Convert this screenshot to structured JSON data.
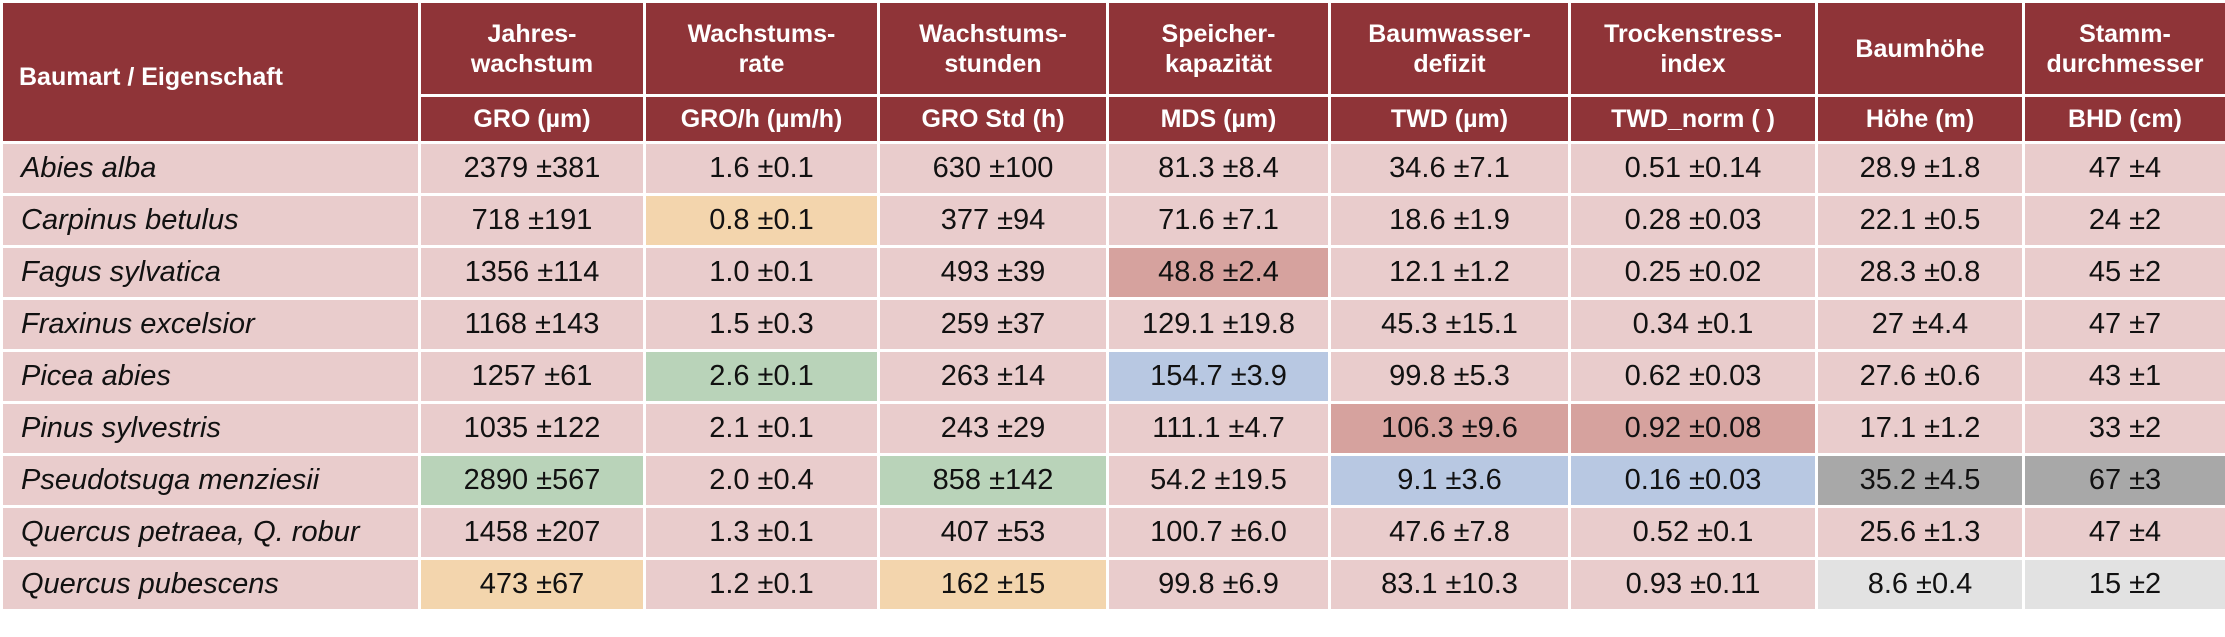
{
  "colors": {
    "header_bg": "#8f3438",
    "row_bg": "#e9cccc",
    "orange": "#f3d5ad",
    "green": "#b9d3b9",
    "red": "#d6a29e",
    "blue": "#b8c8e2",
    "dark_gray": "#a8a8a8",
    "light_gray": "#e2e2e2"
  },
  "table": {
    "corner_label": "Baumart / Eigenschaft",
    "columns": [
      {
        "title": [
          "Jahres-",
          "wachstum"
        ],
        "unit": "GRO (µm)"
      },
      {
        "title": [
          "Wachstums-",
          "rate"
        ],
        "unit": "GRO/h (µm/h)"
      },
      {
        "title": [
          "Wachstums-",
          "stunden"
        ],
        "unit": "GRO Std (h)"
      },
      {
        "title": [
          "Speicher-",
          "kapazität"
        ],
        "unit": "MDS (µm)"
      },
      {
        "title": [
          "Baumwasser-",
          "defizit"
        ],
        "unit": "TWD (µm)"
      },
      {
        "title": [
          "Trockenstress-",
          "index"
        ],
        "unit": "TWD_norm (  )"
      },
      {
        "title": [
          "Baumhöhe",
          ""
        ],
        "unit": "Höhe (m)"
      },
      {
        "title": [
          "Stamm-",
          "durchmesser"
        ],
        "unit": "BHD (cm)"
      }
    ],
    "rows": [
      {
        "species": "Abies alba",
        "cells": [
          {
            "v": "2379 ±381",
            "hl": ""
          },
          {
            "v": "1.6 ±0.1",
            "hl": ""
          },
          {
            "v": "630 ±100",
            "hl": ""
          },
          {
            "v": "81.3 ±8.4",
            "hl": ""
          },
          {
            "v": "34.6 ±7.1",
            "hl": ""
          },
          {
            "v": "0.51 ±0.14",
            "hl": ""
          },
          {
            "v": "28.9  ±1.8",
            "hl": ""
          },
          {
            "v": "47 ±4",
            "hl": ""
          }
        ]
      },
      {
        "species": "Carpinus betulus",
        "cells": [
          {
            "v": "718 ±191",
            "hl": ""
          },
          {
            "v": "0.8 ±0.1",
            "hl": "orange"
          },
          {
            "v": "377 ±94",
            "hl": ""
          },
          {
            "v": "71.6 ±7.1",
            "hl": ""
          },
          {
            "v": "18.6 ±1.9",
            "hl": ""
          },
          {
            "v": "0.28 ±0.03",
            "hl": ""
          },
          {
            "v": "22.1 ±0.5",
            "hl": ""
          },
          {
            "v": "24 ±2",
            "hl": ""
          }
        ]
      },
      {
        "species": "Fagus sylvatica",
        "cells": [
          {
            "v": "1356 ±114",
            "hl": ""
          },
          {
            "v": "1.0 ±0.1",
            "hl": ""
          },
          {
            "v": "493 ±39",
            "hl": ""
          },
          {
            "v": "48.8 ±2.4",
            "hl": "red"
          },
          {
            "v": "12.1 ±1.2",
            "hl": ""
          },
          {
            "v": "0.25 ±0.02",
            "hl": ""
          },
          {
            "v": "28.3 ±0.8",
            "hl": ""
          },
          {
            "v": "45 ±2",
            "hl": ""
          }
        ]
      },
      {
        "species": "Fraxinus excelsior",
        "cells": [
          {
            "v": "1168 ±143",
            "hl": ""
          },
          {
            "v": "1.5 ±0.3",
            "hl": ""
          },
          {
            "v": "259 ±37",
            "hl": ""
          },
          {
            "v": "129.1 ±19.8",
            "hl": ""
          },
          {
            "v": "45.3 ±15.1",
            "hl": ""
          },
          {
            "v": "0.34 ±0.1",
            "hl": ""
          },
          {
            "v": "27 ±4.4",
            "hl": ""
          },
          {
            "v": "47 ±7",
            "hl": ""
          }
        ]
      },
      {
        "species": "Picea abies",
        "cells": [
          {
            "v": "1257 ±61",
            "hl": ""
          },
          {
            "v": "2.6 ±0.1",
            "hl": "green"
          },
          {
            "v": "263 ±14",
            "hl": ""
          },
          {
            "v": "154.7 ±3.9",
            "hl": "blue"
          },
          {
            "v": "99.8 ±5.3",
            "hl": ""
          },
          {
            "v": "0.62 ±0.03",
            "hl": ""
          },
          {
            "v": "27.6 ±0.6",
            "hl": ""
          },
          {
            "v": "43 ±1",
            "hl": ""
          }
        ]
      },
      {
        "species": "Pinus sylvestris",
        "cells": [
          {
            "v": "1035 ±122",
            "hl": ""
          },
          {
            "v": "2.1 ±0.1",
            "hl": ""
          },
          {
            "v": "243 ±29",
            "hl": ""
          },
          {
            "v": "111.1 ±4.7",
            "hl": ""
          },
          {
            "v": "106.3 ±9.6",
            "hl": "red"
          },
          {
            "v": "0.92 ±0.08",
            "hl": "red"
          },
          {
            "v": "17.1 ±1.2",
            "hl": ""
          },
          {
            "v": "33 ±2",
            "hl": ""
          }
        ]
      },
      {
        "species": "Pseudotsuga menziesii",
        "cells": [
          {
            "v": "2890 ±567",
            "hl": "green"
          },
          {
            "v": "2.0  ±0.4",
            "hl": ""
          },
          {
            "v": "858 ±142",
            "hl": "green"
          },
          {
            "v": "54.2 ±19.5",
            "hl": ""
          },
          {
            "v": "9.1 ±3.6",
            "hl": "blue"
          },
          {
            "v": "0.16 ±0.03",
            "hl": "blue"
          },
          {
            "v": "35.2 ±4.5",
            "hl": "dark"
          },
          {
            "v": "67 ±3",
            "hl": "dark"
          }
        ]
      },
      {
        "species": "Quercus petraea, Q. robur",
        "cells": [
          {
            "v": "1458 ±207",
            "hl": ""
          },
          {
            "v": "1.3 ±0.1",
            "hl": ""
          },
          {
            "v": "407 ±53",
            "hl": ""
          },
          {
            "v": "100.7 ±6.0",
            "hl": ""
          },
          {
            "v": "47.6 ±7.8",
            "hl": ""
          },
          {
            "v": "0.52 ±0.1",
            "hl": ""
          },
          {
            "v": "25.6 ±1.3",
            "hl": ""
          },
          {
            "v": "47 ±4",
            "hl": ""
          }
        ]
      },
      {
        "species": "Quercus pubescens",
        "cells": [
          {
            "v": "473 ±67",
            "hl": "orange"
          },
          {
            "v": "1.2 ±0.1",
            "hl": ""
          },
          {
            "v": "162 ±15",
            "hl": "orange"
          },
          {
            "v": "99.8 ±6.9",
            "hl": ""
          },
          {
            "v": "83.1 ±10.3",
            "hl": ""
          },
          {
            "v": "0.93 ±0.11",
            "hl": ""
          },
          {
            "v": "8.6 ±0.4",
            "hl": "light"
          },
          {
            "v": "15 ±2",
            "hl": "light"
          }
        ]
      }
    ]
  }
}
